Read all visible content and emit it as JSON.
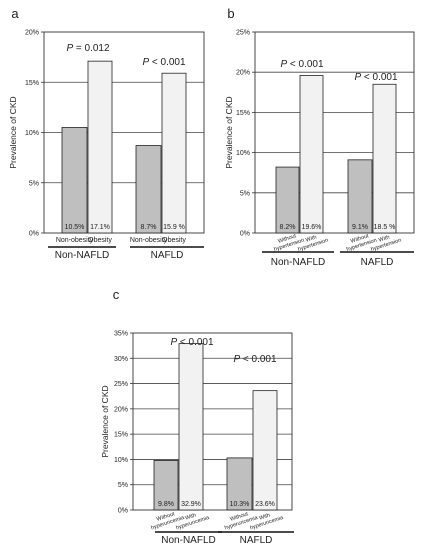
{
  "chart_data": [
    {
      "panel": "a",
      "type": "bar",
      "ylabel": "Prevalence of CKD",
      "ylim": [
        0,
        20
      ],
      "yticks": [
        "0%",
        "5%",
        "10%",
        "15%",
        "20%"
      ],
      "tick_values": [
        0,
        5,
        10,
        15,
        20
      ],
      "grid": true,
      "categories": [
        "Non-obesity",
        "Obesity",
        "Non-obesity",
        "Obesity"
      ],
      "values": [
        10.5,
        17.1,
        8.7,
        15.9
      ],
      "value_labels": [
        "10.5%",
        "17.1%",
        "8.7%",
        "15.9 %"
      ],
      "bar_fills": [
        "#bfbfbf",
        "#f2f2f2",
        "#bfbfbf",
        "#f2f2f2"
      ],
      "groups": [
        {
          "label": "Non-NAFLD",
          "p_prefix": "P",
          "p_rest": " = 0.012"
        },
        {
          "label": "NAFLD",
          "p_prefix": "P",
          "p_rest": " < 0.001"
        }
      ]
    },
    {
      "panel": "b",
      "type": "bar",
      "ylabel": "Prevalence of CKD",
      "ylim": [
        0,
        25
      ],
      "yticks": [
        "0%",
        "5%",
        "10%",
        "15%",
        "20%",
        "25%"
      ],
      "tick_values": [
        0,
        5,
        10,
        15,
        20,
        25
      ],
      "grid": true,
      "categories": [
        [
          "Without",
          "hypertension"
        ],
        [
          "With",
          "hypertension"
        ],
        [
          "Without",
          "hypertension"
        ],
        [
          "With",
          "hypertension"
        ]
      ],
      "values": [
        8.2,
        19.6,
        9.1,
        18.5
      ],
      "value_labels": [
        "8.2%",
        "19.6%",
        "9.1%",
        "18.5 %"
      ],
      "bar_fills": [
        "#bfbfbf",
        "#f2f2f2",
        "#bfbfbf",
        "#f2f2f2"
      ],
      "groups": [
        {
          "label": "Non-NAFLD",
          "p_prefix": "P",
          "p_rest": " < 0.001"
        },
        {
          "label": "NAFLD",
          "p_prefix": "P",
          "p_rest": " < 0.001"
        }
      ]
    },
    {
      "panel": "c",
      "type": "bar",
      "ylabel": "Prevalence of CKD",
      "ylim": [
        0,
        35
      ],
      "yticks": [
        "0%",
        "5%",
        "10%",
        "15%",
        "20%",
        "25%",
        "30%",
        "35%"
      ],
      "tick_values": [
        0,
        5,
        10,
        15,
        20,
        25,
        30,
        35
      ],
      "grid": true,
      "categories": [
        [
          "Without",
          "hyperuricemia"
        ],
        [
          "With",
          "hyperuricemia"
        ],
        [
          "Without",
          "hyperuricemia"
        ],
        [
          "With",
          "hyperuricemia"
        ]
      ],
      "values": [
        9.8,
        32.9,
        10.3,
        23.6
      ],
      "value_labels": [
        "9.8%",
        "32.9%",
        "10.3%",
        "23.6%"
      ],
      "bar_fills": [
        "#bfbfbf",
        "#f2f2f2",
        "#bfbfbf",
        "#f2f2f2"
      ],
      "groups": [
        {
          "label": "Non-NAFLD",
          "p_prefix": "P",
          "p_rest": " < 0.001"
        },
        {
          "label": "NAFLD",
          "p_prefix": "P",
          "p_rest": " < 0.001"
        }
      ]
    }
  ],
  "colors": {
    "axis": "#333333",
    "grid": "#444444",
    "text": "#222222"
  }
}
